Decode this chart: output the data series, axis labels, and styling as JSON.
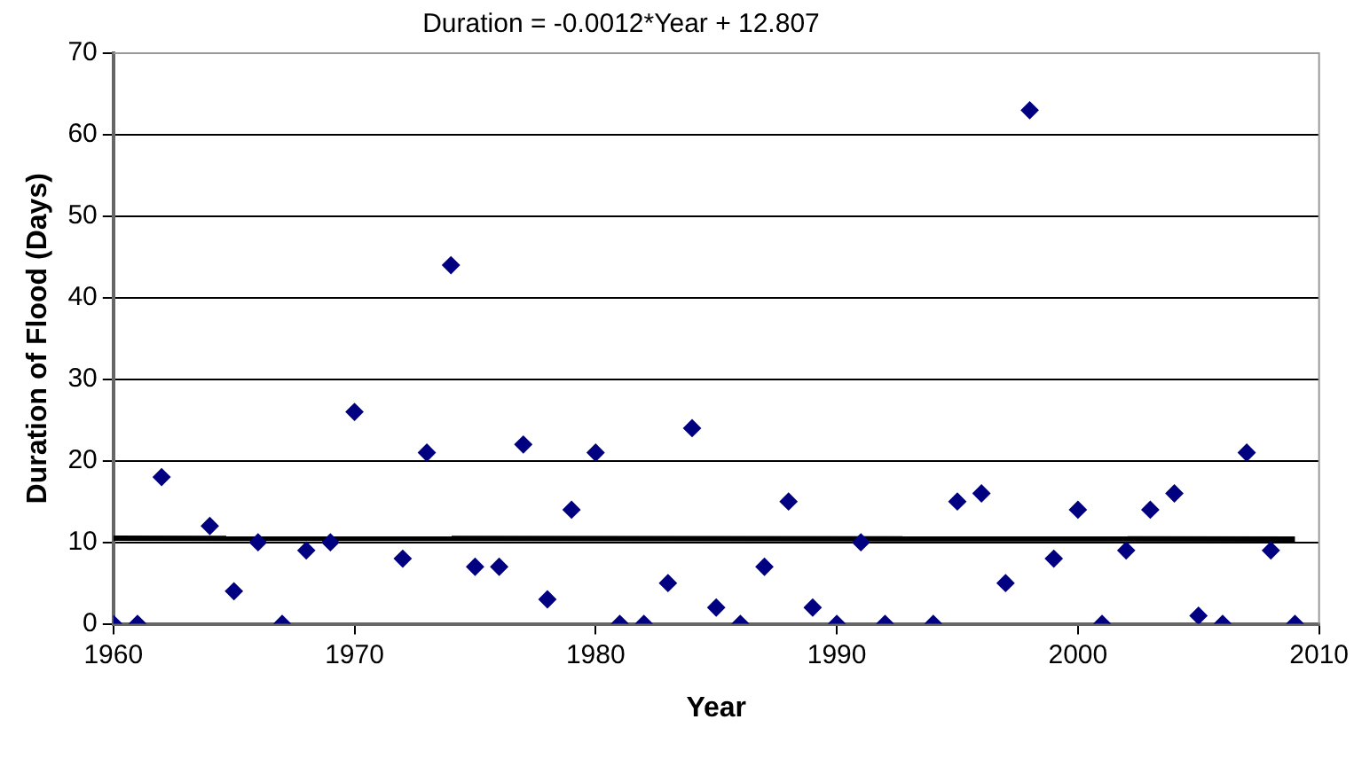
{
  "chart_data": {
    "type": "scatter",
    "xlabel": "Year",
    "ylabel": "Duration of Flood (Days)",
    "annotations": [
      "Duration = -0.0012*Year + 12.807"
    ],
    "x": [
      1960,
      1961,
      1962,
      1964,
      1965,
      1966,
      1967,
      1968,
      1969,
      1970,
      1972,
      1973,
      1974,
      1975,
      1976,
      1977,
      1978,
      1979,
      1980,
      1981,
      1982,
      1983,
      1984,
      1985,
      1986,
      1987,
      1988,
      1989,
      1990,
      1991,
      1992,
      1994,
      1995,
      1996,
      1997,
      1998,
      1999,
      2000,
      2001,
      2002,
      2003,
      2004,
      2005,
      2006,
      2007,
      2008,
      2009
    ],
    "series": [
      {
        "marker": "diamond",
        "color": "#000080",
        "values": [
          0,
          0,
          18,
          12,
          4,
          10,
          0,
          9,
          10,
          26,
          8,
          21,
          44,
          7,
          7,
          22,
          3,
          14,
          21,
          0,
          0,
          5,
          24,
          2,
          0,
          7,
          15,
          2,
          0,
          10,
          0,
          0,
          15,
          16,
          5,
          63,
          8,
          14,
          0,
          9,
          14,
          16,
          1,
          0,
          21,
          9,
          0
        ]
      },
      {
        "type": "line",
        "marker": "none",
        "color": "#000000",
        "x": [
          1960,
          2009
        ],
        "values": [
          10.5,
          10.4
        ]
      }
    ],
    "xlim": [
      1960,
      2010
    ],
    "xticks": [
      1960,
      1970,
      1980,
      1990,
      2000,
      2010
    ],
    "ylim": [
      0,
      70
    ],
    "yticks": [
      0,
      10,
      20,
      30,
      40,
      50,
      60,
      70
    ],
    "grid": "y",
    "legend": false
  }
}
